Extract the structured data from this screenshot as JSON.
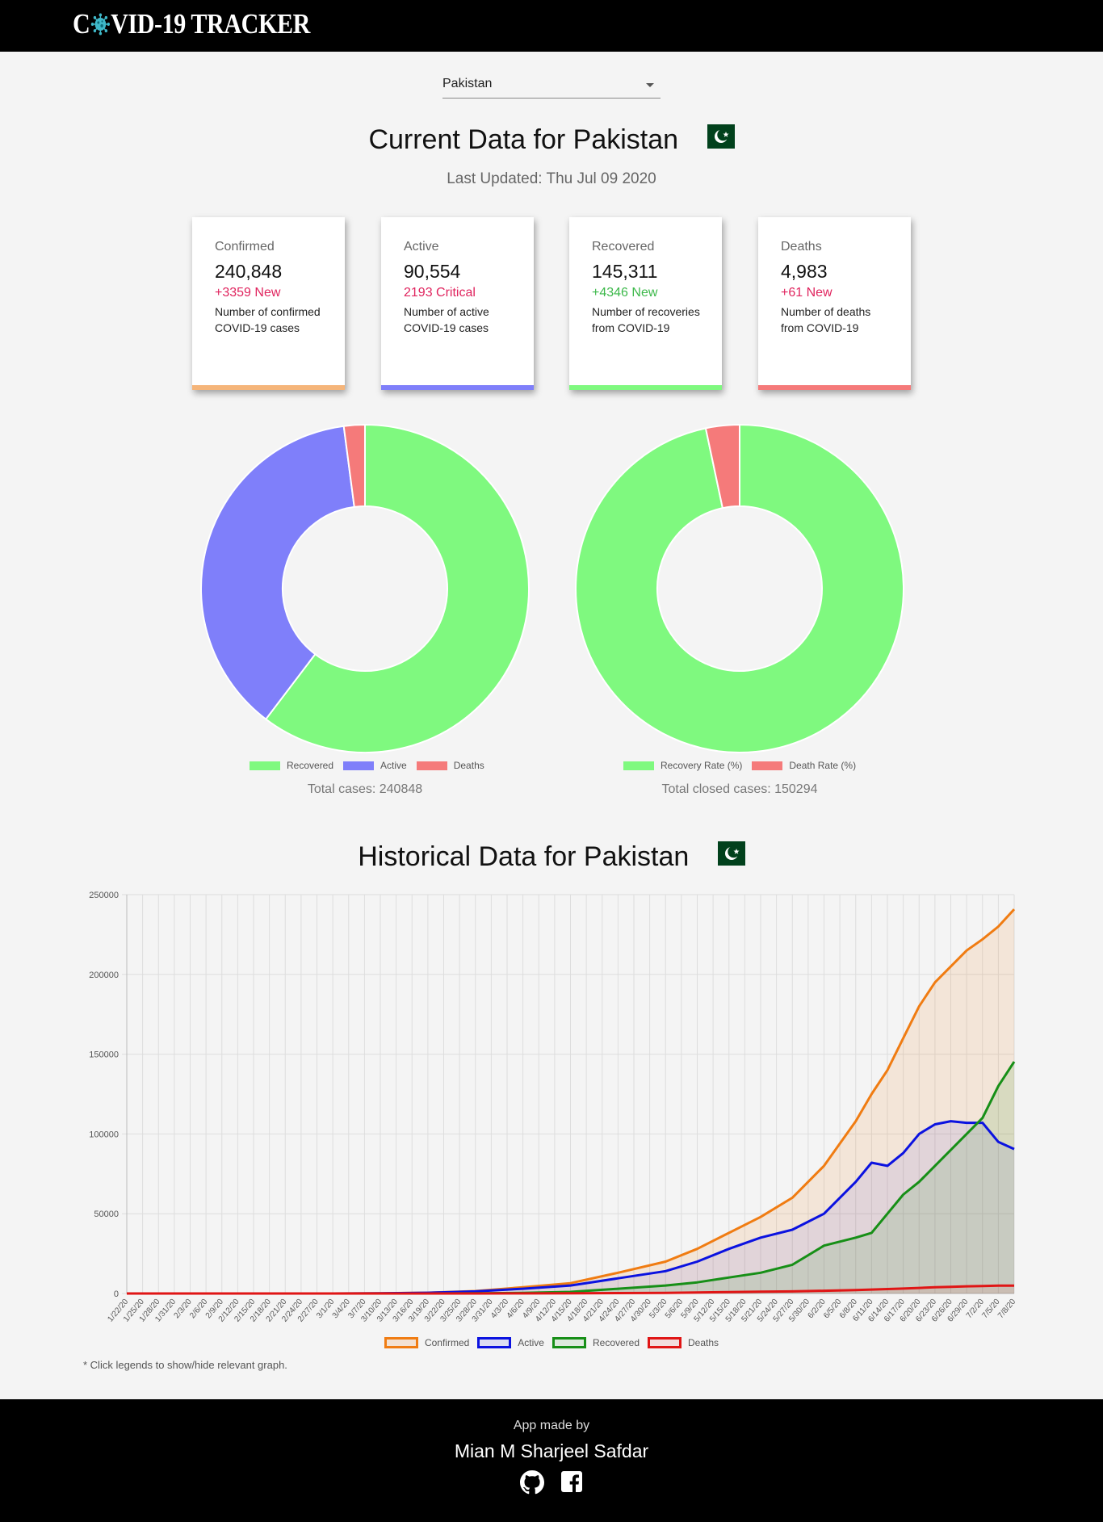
{
  "header": {
    "logo_prefix": "C",
    "logo_suffix": "VID-19 TRACKER"
  },
  "country_select": {
    "value": "Pakistan"
  },
  "current": {
    "title": "Current Data for Pakistan",
    "last_updated": "Last Updated: Thu Jul 09 2020"
  },
  "cards": [
    {
      "label": "Confirmed",
      "value": "240,848",
      "change": "+3359 New",
      "desc": "Number of confirmed COVID-19 cases",
      "change_color": "#e0245e",
      "bar_color": "#f5b57a"
    },
    {
      "label": "Active",
      "value": "90,554",
      "change": "2193 Critical",
      "desc": "Number of active COVID-19 cases",
      "change_color": "#e0245e",
      "bar_color": "#7f7ffa"
    },
    {
      "label": "Recovered",
      "value": "145,311",
      "change": "+4346 New",
      "desc": "Number of recoveries from COVID-19",
      "change_color": "#3cb84a",
      "bar_color": "#7ff97f"
    },
    {
      "label": "Deaths",
      "value": "4,983",
      "change": "+61 New",
      "desc": "Number of deaths from COVID-19",
      "change_color": "#e0245e",
      "bar_color": "#f57a7a"
    }
  ],
  "donut1": {
    "legend": [
      "Recovered",
      "Active",
      "Deaths"
    ],
    "total": "Total cases: 240848"
  },
  "donut2": {
    "legend": [
      "Recovery Rate (%)",
      "Death Rate (%)"
    ],
    "total": "Total closed cases: 150294"
  },
  "historical": {
    "title": "Historical Data for Pakistan",
    "legend": [
      "Confirmed",
      "Active",
      "Recovered",
      "Deaths"
    ],
    "note": "* Click legends to show/hide relevant graph."
  },
  "footer": {
    "made_by": "App made by",
    "author": "Mian M Sharjeel Safdar"
  },
  "icons": {
    "github": "github-icon",
    "facebook": "facebook-icon"
  },
  "colors": {
    "recovered": "#7ff97f",
    "active": "#7f7ffa",
    "deaths": "#f57a7a",
    "line_confirmed": "#f07c12",
    "line_active": "#0b12e0",
    "line_recovered": "#178f17",
    "line_deaths": "#e01515"
  },
  "chart_data": [
    {
      "type": "pie",
      "categories": [
        "Recovered",
        "Active",
        "Deaths"
      ],
      "values": [
        145311,
        90554,
        4983
      ],
      "colors": [
        "#7ff97f",
        "#7f7ffa",
        "#f57a7a"
      ]
    },
    {
      "type": "pie",
      "categories": [
        "Recovery Rate (%)",
        "Death Rate (%)"
      ],
      "values": [
        96.68,
        3.32
      ],
      "colors": [
        "#7ff97f",
        "#f57a7a"
      ]
    },
    {
      "type": "area",
      "ylim": [
        0,
        250000
      ],
      "yticks": [
        "0",
        "50000",
        "100000",
        "150000",
        "200000",
        "250000"
      ],
      "xticks": [
        "1/22/20",
        "1/25/20",
        "1/28/20",
        "1/31/20",
        "2/3/20",
        "2/6/20",
        "2/9/20",
        "2/12/20",
        "2/15/20",
        "2/18/20",
        "2/21/20",
        "2/24/20",
        "2/27/20",
        "3/1/20",
        "3/4/20",
        "3/7/20",
        "3/10/20",
        "3/13/20",
        "3/16/20",
        "3/19/20",
        "3/22/20",
        "3/25/20",
        "3/28/20",
        "3/31/20",
        "4/3/20",
        "4/6/20",
        "4/9/20",
        "4/12/20",
        "4/15/20",
        "4/18/20",
        "4/21/20",
        "4/24/20",
        "4/27/20",
        "4/30/20",
        "5/3/20",
        "5/6/20",
        "5/9/20",
        "5/12/20",
        "5/15/20",
        "5/18/20",
        "5/21/20",
        "5/24/20",
        "5/27/20",
        "5/30/20",
        "6/2/20",
        "6/5/20",
        "6/8/20",
        "6/11/20",
        "6/14/20",
        "6/17/20",
        "6/20/20",
        "6/23/20",
        "6/26/20",
        "6/29/20",
        "7/2/20",
        "7/5/20",
        "7/8/20"
      ],
      "x": [
        "3/1/20",
        "3/10/20",
        "3/19/20",
        "3/28/20",
        "4/6/20",
        "4/15/20",
        "4/24/20",
        "5/3/20",
        "5/9/20",
        "5/15/20",
        "5/21/20",
        "5/27/20",
        "6/2/20",
        "6/8/20",
        "6/11/20",
        "6/14/20",
        "6/17/20",
        "6/20/20",
        "6/23/20",
        "6/26/20",
        "6/29/20",
        "7/2/20",
        "7/5/20",
        "7/8/20"
      ],
      "series": [
        {
          "name": "Confirmed",
          "color": "#f07c12",
          "values": [
            0,
            100,
            500,
            1500,
            3900,
            6500,
            13000,
            20000,
            28000,
            38000,
            48000,
            60000,
            80000,
            108000,
            125000,
            140000,
            160000,
            180000,
            195000,
            205000,
            215000,
            222000,
            230000,
            240848
          ]
        },
        {
          "name": "Active",
          "color": "#0b12e0",
          "values": [
            0,
            100,
            450,
            1300,
            3000,
            5000,
            9500,
            14000,
            20000,
            28000,
            35000,
            40000,
            50000,
            70000,
            82000,
            80000,
            88000,
            100000,
            106000,
            108000,
            107000,
            107000,
            95000,
            90554
          ]
        },
        {
          "name": "Recovered",
          "color": "#178f17",
          "values": [
            0,
            0,
            10,
            100,
            400,
            1000,
            3000,
            5000,
            7000,
            10000,
            13000,
            18000,
            30000,
            35000,
            38000,
            50000,
            62000,
            70000,
            80000,
            90000,
            100000,
            110000,
            130000,
            145311
          ]
        },
        {
          "name": "Deaths",
          "color": "#e01515",
          "values": [
            0,
            0,
            5,
            20,
            60,
            130,
            250,
            400,
            650,
            900,
            1100,
            1300,
            1700,
            2200,
            2500,
            2800,
            3100,
            3500,
            3900,
            4200,
            4500,
            4700,
            4900,
            4983
          ]
        }
      ]
    }
  ]
}
